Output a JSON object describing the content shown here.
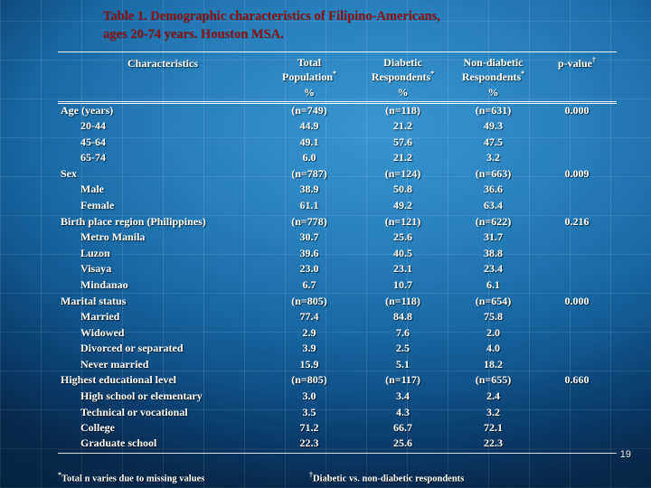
{
  "slide": {
    "title_line1": "Table 1. Demographic characteristics of Filipino-Americans,",
    "title_line2": "ages 20-74 years. Houston MSA.",
    "page_number": "19"
  },
  "table": {
    "columns": [
      {
        "label": "Characteristics",
        "sup": "",
        "unit": ""
      },
      {
        "label": "Total Population",
        "sup": "*",
        "unit": "%"
      },
      {
        "label": "Diabetic Respondents",
        "sup": "*",
        "unit": "%"
      },
      {
        "label": "Non-diabetic Respondents",
        "sup": "*",
        "unit": "%"
      },
      {
        "label": "p-value",
        "sup": "†",
        "unit": ""
      }
    ],
    "rows": [
      {
        "label": "Age (years)",
        "indent": false,
        "values": [
          "(n=749)",
          "(n=118)",
          "(n=631)",
          "0.000"
        ]
      },
      {
        "label": "20-44",
        "indent": true,
        "values": [
          "44.9",
          "21.2",
          "49.3",
          ""
        ]
      },
      {
        "label": "45-64",
        "indent": true,
        "values": [
          "49.1",
          "57.6",
          "47.5",
          ""
        ]
      },
      {
        "label": "65-74",
        "indent": true,
        "values": [
          "6.0",
          "21.2",
          "3.2",
          ""
        ]
      },
      {
        "label": "Sex",
        "indent": false,
        "values": [
          "(n=787)",
          "(n=124)",
          "(n=663)",
          "0.009"
        ]
      },
      {
        "label": "Male",
        "indent": true,
        "values": [
          "38.9",
          "50.8",
          "36.6",
          ""
        ]
      },
      {
        "label": "Female",
        "indent": true,
        "values": [
          "61.1",
          "49.2",
          "63.4",
          ""
        ]
      },
      {
        "label": "Birth place region (Philippines)",
        "indent": false,
        "values": [
          "(n=778)",
          "(n=121)",
          "(n=622)",
          "0.216"
        ]
      },
      {
        "label": "Metro Manila",
        "indent": true,
        "values": [
          "30.7",
          "25.6",
          "31.7",
          ""
        ]
      },
      {
        "label": "Luzon",
        "indent": true,
        "values": [
          "39.6",
          "40.5",
          "38.8",
          ""
        ]
      },
      {
        "label": "Visaya",
        "indent": true,
        "values": [
          "23.0",
          "23.1",
          "23.4",
          ""
        ]
      },
      {
        "label": "Mindanao",
        "indent": true,
        "values": [
          "6.7",
          "10.7",
          "6.1",
          ""
        ]
      },
      {
        "label": "Marital status",
        "indent": false,
        "values": [
          "(n=805)",
          "(n=118)",
          "(n=654)",
          "0.000"
        ]
      },
      {
        "label": "Married",
        "indent": true,
        "values": [
          "77.4",
          "84.8",
          "75.8",
          ""
        ]
      },
      {
        "label": "Widowed",
        "indent": true,
        "values": [
          "2.9",
          "7.6",
          "2.0",
          ""
        ]
      },
      {
        "label": "Divorced or separated",
        "indent": true,
        "values": [
          "3.9",
          "2.5",
          "4.0",
          ""
        ]
      },
      {
        "label": "Never married",
        "indent": true,
        "values": [
          "15.9",
          "5.1",
          "18.2",
          ""
        ]
      },
      {
        "label": "Highest educational level",
        "indent": false,
        "values": [
          "(n=805)",
          "(n=117)",
          "(n=655)",
          "0.660"
        ]
      },
      {
        "label": "High school or elementary",
        "indent": true,
        "values": [
          "3.0",
          "3.4",
          "2.4",
          ""
        ]
      },
      {
        "label": "Technical or vocational",
        "indent": true,
        "values": [
          "3.5",
          "4.3",
          "3.2",
          ""
        ]
      },
      {
        "label": "College",
        "indent": true,
        "values": [
          "71.2",
          "66.7",
          "72.1",
          ""
        ]
      },
      {
        "label": "Graduate school",
        "indent": true,
        "values": [
          "22.3",
          "25.6",
          "22.3",
          ""
        ]
      }
    ]
  },
  "footnotes": [
    {
      "marker": "*",
      "text": "Total n varies due to missing values"
    },
    {
      "marker": "†",
      "text": "Diabetic vs. non-diabetic respondents"
    }
  ]
}
